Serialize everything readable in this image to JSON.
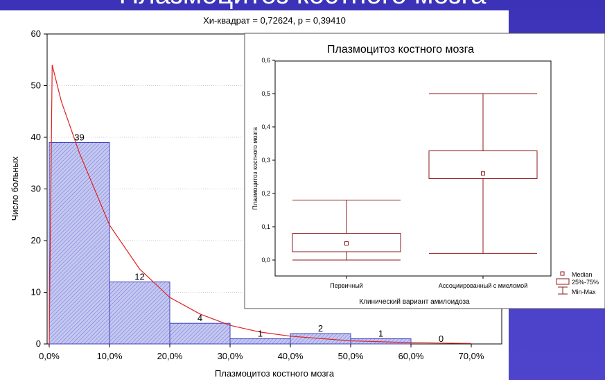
{
  "slide": {
    "title": "Плазмоцитоз костного мозга"
  },
  "chart_data": [
    {
      "type": "bar",
      "title": "Хи-квадрат = 0,72624, p = 0,39410",
      "xlabel": "Плазмоцитоз костного мозга",
      "ylabel": "Число больных",
      "x_ticks": [
        "0,0%",
        "10,0%",
        "20,0%",
        "30,0%",
        "40,0%",
        "50,0%",
        "60,0%",
        "70,0%"
      ],
      "y_ticks": [
        "0",
        "10",
        "20",
        "30",
        "40",
        "50",
        "60"
      ],
      "xlim": [
        0,
        0.72
      ],
      "ylim": [
        0,
        60
      ],
      "bins": [
        {
          "from": 0.0,
          "to": 0.1,
          "count": 39,
          "label": "39"
        },
        {
          "from": 0.1,
          "to": 0.2,
          "count": 12,
          "label": "12"
        },
        {
          "from": 0.2,
          "to": 0.3,
          "count": 4,
          "label": "4"
        },
        {
          "from": 0.3,
          "to": 0.4,
          "count": 1,
          "label": "1"
        },
        {
          "from": 0.4,
          "to": 0.5,
          "count": 2,
          "label": "2"
        },
        {
          "from": 0.5,
          "to": 0.6,
          "count": 1,
          "label": "1"
        },
        {
          "from": 0.6,
          "to": 0.7,
          "count": 0,
          "label": "0"
        }
      ],
      "fit_curve": {
        "type": "exponential",
        "peak_x": 0.005,
        "peak_y": 54,
        "points": [
          [
            0.0,
            0
          ],
          [
            0.005,
            54
          ],
          [
            0.02,
            47
          ],
          [
            0.05,
            37
          ],
          [
            0.1,
            23
          ],
          [
            0.15,
            14.5
          ],
          [
            0.2,
            9
          ],
          [
            0.25,
            5.8
          ],
          [
            0.3,
            3.6
          ],
          [
            0.35,
            2.3
          ],
          [
            0.4,
            1.5
          ],
          [
            0.5,
            0.6
          ],
          [
            0.6,
            0.25
          ],
          [
            0.7,
            0.1
          ]
        ]
      },
      "grid": true,
      "colors": {
        "bar_fill": "#c4c8f0",
        "bar_edge": "#4040c0",
        "curve": "#e02020"
      }
    },
    {
      "type": "box",
      "title": "Плазмоцитоз костного мозга",
      "xlabel": "Клинический вариант амилоидоза",
      "ylabel": "Плазмоцитоз костного мозга",
      "categories": [
        "Первичный",
        "Ассоциированный с миеломой"
      ],
      "y_ticks": [
        "0,0",
        "0,1",
        "0,2",
        "0,3",
        "0,4",
        "0,5",
        "0,6"
      ],
      "ylim": [
        -0.06,
        0.6
      ],
      "boxes": [
        {
          "min": 0.0,
          "q1": 0.025,
          "median": 0.05,
          "q3": 0.08,
          "max": 0.18
        },
        {
          "min": 0.02,
          "q1": 0.245,
          "median": 0.26,
          "q3": 0.328,
          "max": 0.5
        }
      ],
      "legend": [
        "Median",
        "25%-75%",
        "Min-Max"
      ],
      "legend_position": "right",
      "grid": false,
      "colors": {
        "box": "#8b1a1a"
      }
    }
  ]
}
